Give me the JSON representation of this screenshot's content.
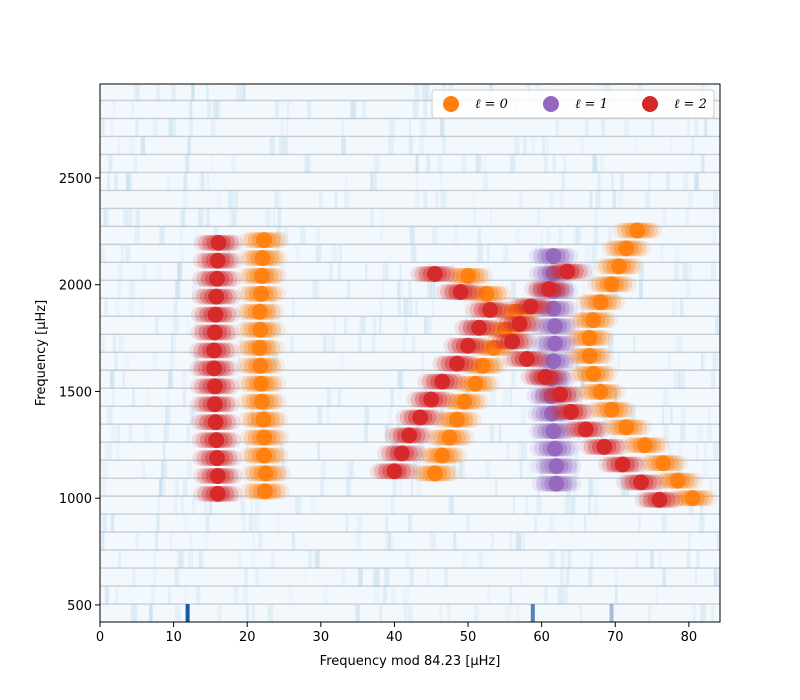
{
  "chart_data": {
    "type": "scatter",
    "xlabel": "Frequency mod 84.23 [μHz]",
    "ylabel": "Frequency [μHz]",
    "xlim": [
      0,
      84.23
    ],
    "ylim": [
      420,
      2940
    ],
    "x_ticks": [
      0,
      10,
      20,
      30,
      40,
      50,
      60,
      70,
      80
    ],
    "y_ticks": [
      500,
      1000,
      1500,
      2000,
      2500
    ],
    "grid": false,
    "legend": {
      "placement": "top-right",
      "columns": 3
    },
    "background": "echelle power spectrum, blue colormap",
    "delta_nu": 84.23,
    "series": [
      {
        "name": "ℓ = 0",
        "color": "#ff7f0e",
        "points": [
          [
            22.4,
            1032
          ],
          [
            22.5,
            1116
          ],
          [
            22.3,
            1200
          ],
          [
            22.3,
            1284
          ],
          [
            22.2,
            1368
          ],
          [
            22.0,
            1452
          ],
          [
            21.9,
            1536
          ],
          [
            21.8,
            1620
          ],
          [
            21.7,
            1704
          ],
          [
            21.8,
            1789
          ],
          [
            21.7,
            1873
          ],
          [
            21.9,
            1957
          ],
          [
            22.0,
            2041
          ],
          [
            22.1,
            2125
          ],
          [
            22.3,
            2209
          ],
          [
            45.5,
            1116
          ],
          [
            46.5,
            1200
          ],
          [
            47.5,
            1284
          ],
          [
            48.5,
            1368
          ],
          [
            49.5,
            1452
          ],
          [
            51.0,
            1536
          ],
          [
            52.0,
            1620
          ],
          [
            53.5,
            1704
          ],
          [
            55.0,
            1789
          ],
          [
            56.5,
            1873
          ],
          [
            52.5,
            1957
          ],
          [
            50.0,
            2041
          ],
          [
            80.5,
            1000
          ],
          [
            78.5,
            1082
          ],
          [
            76.5,
            1164
          ],
          [
            74.0,
            1248
          ],
          [
            71.5,
            1332
          ],
          [
            69.5,
            1414
          ],
          [
            68.0,
            1498
          ],
          [
            67.0,
            1582
          ],
          [
            66.5,
            1666
          ],
          [
            66.5,
            1750
          ],
          [
            67.0,
            1834
          ],
          [
            68.0,
            1918
          ],
          [
            69.5,
            2002
          ],
          [
            70.5,
            2086
          ],
          [
            71.5,
            2170
          ],
          [
            73.0,
            2254
          ]
        ]
      },
      {
        "name": "ℓ = 1",
        "color": "#9467bd",
        "points": [
          [
            62.0,
            1068
          ],
          [
            62.0,
            1150
          ],
          [
            61.8,
            1232
          ],
          [
            61.6,
            1314
          ],
          [
            61.4,
            1396
          ],
          [
            61.3,
            1478
          ],
          [
            61.3,
            1560
          ],
          [
            61.6,
            1642
          ],
          [
            61.8,
            1724
          ],
          [
            61.8,
            1806
          ],
          [
            61.6,
            1888
          ],
          [
            61.6,
            1970
          ],
          [
            61.6,
            2052
          ],
          [
            61.6,
            2134
          ]
        ]
      },
      {
        "name": "ℓ = 2",
        "color": "#d62728",
        "points": [
          [
            16.0,
            1020
          ],
          [
            16.0,
            1104
          ],
          [
            15.9,
            1188
          ],
          [
            15.8,
            1272
          ],
          [
            15.7,
            1356
          ],
          [
            15.6,
            1440
          ],
          [
            15.6,
            1524
          ],
          [
            15.5,
            1608
          ],
          [
            15.5,
            1692
          ],
          [
            15.6,
            1776
          ],
          [
            15.7,
            1860
          ],
          [
            15.8,
            1944
          ],
          [
            15.9,
            2028
          ],
          [
            16.0,
            2112
          ],
          [
            16.1,
            2196
          ],
          [
            40.0,
            1126
          ],
          [
            41.0,
            1210
          ],
          [
            42.0,
            1294
          ],
          [
            43.5,
            1378
          ],
          [
            45.0,
            1462
          ],
          [
            46.5,
            1546
          ],
          [
            48.5,
            1630
          ],
          [
            50.0,
            1714
          ],
          [
            51.5,
            1798
          ],
          [
            53.0,
            1882
          ],
          [
            49.0,
            1966
          ],
          [
            45.5,
            2050
          ],
          [
            76.0,
            992
          ],
          [
            73.5,
            1074
          ],
          [
            71.0,
            1158
          ],
          [
            68.5,
            1240
          ],
          [
            66.0,
            1322
          ],
          [
            64.0,
            1404
          ],
          [
            62.5,
            1486
          ],
          [
            60.5,
            1568
          ],
          [
            58.0,
            1652
          ],
          [
            56.0,
            1734
          ],
          [
            57.0,
            1816
          ],
          [
            58.5,
            1898
          ],
          [
            61.0,
            1980
          ],
          [
            63.5,
            2062
          ]
        ]
      }
    ]
  }
}
